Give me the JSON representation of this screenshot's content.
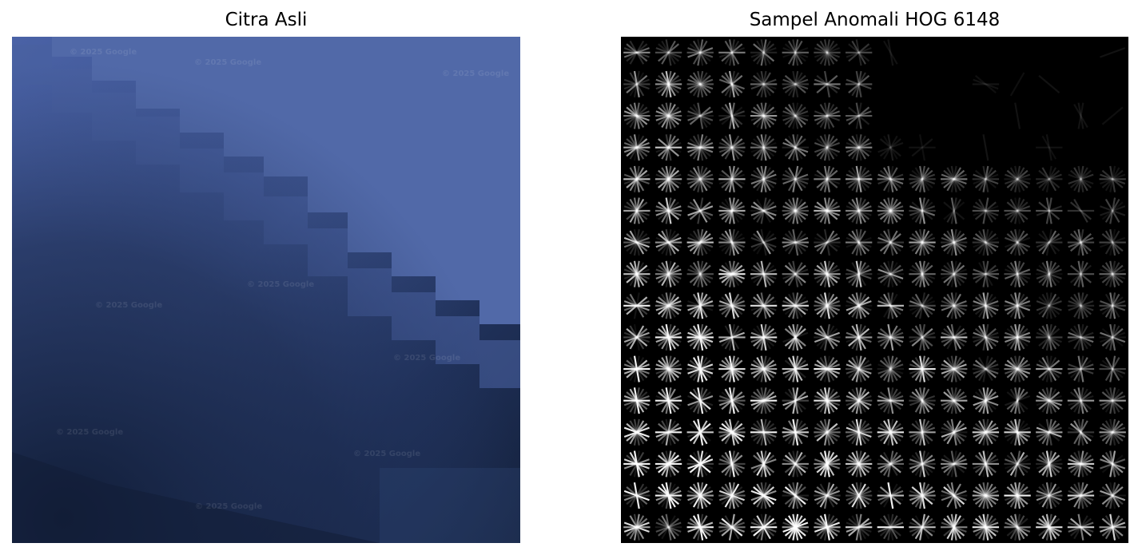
{
  "figure": {
    "left_panel": {
      "title": "Citra Asli",
      "image_description_icon": "satellite-aerial-photo",
      "watermark_text": "© 2025 Google"
    },
    "right_panel": {
      "title": "Sampel Anomali HOG 6148",
      "image_description_icon": "hog-feature-visualization",
      "grid_cells": 16
    }
  },
  "colors": {
    "background": "#ffffff",
    "sea_light": "#5068a8",
    "sea_dark": "#15233f",
    "hog_background": "#000000",
    "hog_stroke": "#ffffff"
  }
}
